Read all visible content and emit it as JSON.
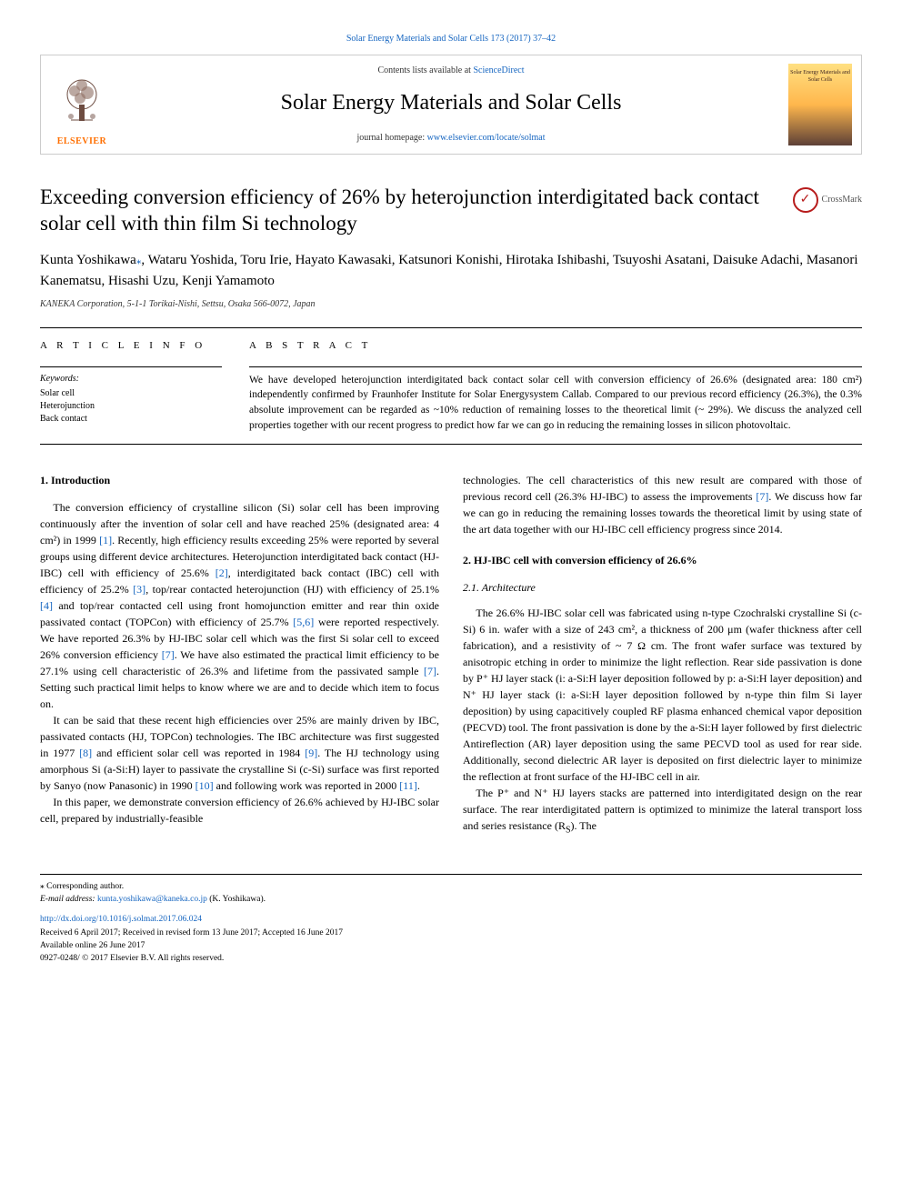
{
  "citation": "Solar Energy Materials and Solar Cells 173 (2017) 37–42",
  "header": {
    "contents_prefix": "Contents lists available at ",
    "contents_link": "ScienceDirect",
    "publisher_label": "ELSEVIER",
    "journal_title": "Solar Energy Materials and Solar Cells",
    "homepage_prefix": "journal homepage: ",
    "homepage_url": "www.elsevier.com/locate/solmat",
    "cover_text": "Solar Energy Materials and Solar Cells"
  },
  "crossmark_label": "CrossMark",
  "title": "Exceeding conversion efficiency of 26% by heterojunction interdigitated back contact solar cell with thin film Si technology",
  "authors_html": "Kunta Yoshikawa<span class='corr-mark'>⁎</span>, Wataru Yoshida, Toru Irie, Hayato Kawasaki, Katsunori Konishi, Hirotaka Ishibashi, Tsuyoshi Asatani, Daisuke Adachi, Masanori Kanematsu, Hisashi Uzu, Kenji Yamamoto",
  "affiliation": "KANEKA Corporation, 5-1-1 Torikai-Nishi, Settsu, Osaka 566-0072, Japan",
  "article_info_label": "A R T I C L E  I N F O",
  "abstract_label": "A B S T R A C T",
  "keywords_label": "Keywords:",
  "keywords": [
    "Solar cell",
    "Heterojunction",
    "Back contact"
  ],
  "abstract": "We have developed heterojunction interdigitated back contact solar cell with conversion efficiency of 26.6% (designated area: 180 cm²) independently confirmed by Fraunhofer Institute for Solar Energysystem Callab. Compared to our previous record efficiency (26.3%), the 0.3% absolute improvement can be regarded as ~10% reduction of remaining losses to the theoretical limit (~ 29%). We discuss the analyzed cell properties together with our recent progress to predict how far we can go in reducing the remaining losses in silicon photovoltaic.",
  "sections": {
    "intro_heading": "1. Introduction",
    "intro_p1": "The conversion efficiency of crystalline silicon (Si) solar cell has been improving continuously after the invention of solar cell and have reached 25% (designated area: 4 cm²) in 1999 <span class='ref-link'>[1]</span>. Recently, high efficiency results exceeding 25% were reported by several groups using different device architectures. Heterojunction interdigitated back contact (HJ-IBC) cell with efficiency of 25.6% <span class='ref-link'>[2]</span>, interdigitated back contact (IBC) cell with efficiency of 25.2% <span class='ref-link'>[3]</span>, top/rear contacted heterojunction (HJ) with efficiency of 25.1% <span class='ref-link'>[4]</span> and top/rear contacted cell using front homojunction emitter and rear thin oxide passivated contact (TOPCon) with efficiency of 25.7% <span class='ref-link'>[5,6]</span> were reported respectively. We have reported 26.3% by HJ-IBC solar cell which was the first Si solar cell to exceed 26% conversion efficiency <span class='ref-link'>[7]</span>. We have also estimated the practical limit efficiency to be 27.1% using cell characteristic of 26.3% and lifetime from the passivated sample <span class='ref-link'>[7]</span>. Setting such practical limit helps to know where we are and to decide which item to focus on.",
    "intro_p2": "It can be said that these recent high efficiencies over 25% are mainly driven by IBC, passivated contacts (HJ, TOPCon) technologies. The IBC architecture was first suggested in 1977 <span class='ref-link'>[8]</span> and efficient solar cell was reported in 1984 <span class='ref-link'>[9]</span>. The HJ technology using amorphous Si (a-Si:H) layer to passivate the crystalline Si (c-Si) surface was first reported by Sanyo (now Panasonic) in 1990 <span class='ref-link'>[10]</span> and following work was reported in 2000 <span class='ref-link'>[11]</span>.",
    "intro_p3": "In this paper, we demonstrate conversion efficiency of 26.6% achieved by HJ-IBC solar cell, prepared by industrially-feasible",
    "col2_p1": "technologies. The cell characteristics of this new result are compared with those of previous record cell (26.3% HJ-IBC) to assess the improvements <span class='ref-link'>[7]</span>. We discuss how far we can go in reducing the remaining losses towards the theoretical limit by using state of the art data together with our HJ-IBC cell efficiency progress since 2014.",
    "s2_heading": "2. HJ-IBC cell with conversion efficiency of 26.6%",
    "s21_heading": "2.1. Architecture",
    "s21_p1": "The 26.6% HJ-IBC solar cell was fabricated using n-type Czochralski crystalline Si (c-Si) 6 in. wafer with a size of 243 cm², a thickness of 200 μm (wafer thickness after cell fabrication), and a resistivity of ~ 7 Ω cm. The front wafer surface was textured by anisotropic etching in order to minimize the light reflection. Rear side passivation is done by P⁺ HJ layer stack (i: a-Si:H layer deposition followed by p: a-Si:H layer deposition) and N⁺ HJ layer stack (i: a-Si:H layer deposition followed by n-type thin film Si layer deposition) by using capacitively coupled RF plasma enhanced chemical vapor deposition (PECVD) tool. The front passivation is done by the a-Si:H layer followed by first dielectric Antireflection (AR) layer deposition using the same PECVD tool as used for rear side. Additionally, second dielectric AR layer is deposited on first dielectric layer to minimize the reflection at front surface of the HJ-IBC cell in air.",
    "s21_p2": "The P⁺ and N⁺ HJ layers stacks are patterned into interdigitated design on the rear surface. The rear interdigitated pattern is optimized to minimize the lateral transport loss and series resistance (R<sub>S</sub>). The"
  },
  "footer": {
    "corr_label": "⁎ Corresponding author.",
    "email_prefix": "E-mail address: ",
    "email": "kunta.yoshikawa@kaneka.co.jp",
    "email_suffix": " (K. Yoshikawa).",
    "doi": "http://dx.doi.org/10.1016/j.solmat.2017.06.024",
    "dates": "Received 6 April 2017; Received in revised form 13 June 2017; Accepted 16 June 2017",
    "available": "Available online 26 June 2017",
    "copyright": "0927-0248/ © 2017 Elsevier B.V. All rights reserved."
  },
  "colors": {
    "link": "#1565c0",
    "elsevier_orange": "#ff6f00",
    "crossmark_red": "#b71c1c"
  }
}
